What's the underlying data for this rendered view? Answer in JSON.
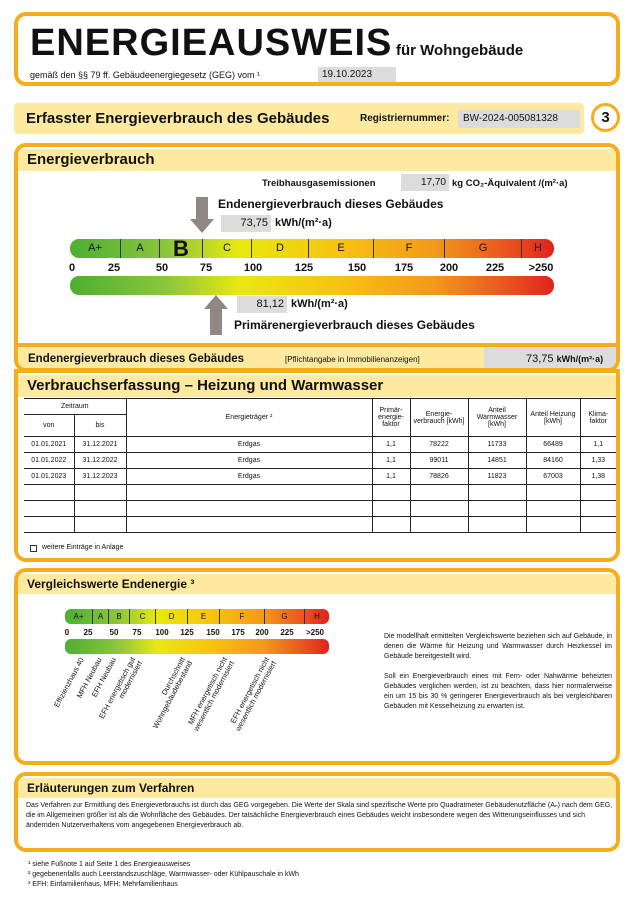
{
  "header": {
    "title": "ENERGIEAUSWEIS",
    "subtitle": "für Wohngebäude",
    "law": "gemäß den §§ 79 ff. Gebäudeenergiegesetz (GEG) vom ¹",
    "date": "19.10.2023"
  },
  "section_bar": {
    "title": "Erfasster Energieverbrauch des Gebäudes",
    "reg_label": "Registriernummer:",
    "reg_number": "BW-2024-005081328",
    "page": "3"
  },
  "energy": {
    "title": "Energieverbrauch",
    "ghg_label": "Treibhausgasemissionen",
    "ghg_value": "17,70",
    "ghg_unit": "kg CO₂-Äquivalent /(m²·a)",
    "end_label": "Endenergieverbrauch dieses Gebäudes",
    "end_value": "73,75",
    "unit": "kWh/(m²·a)",
    "primary_value": "81,12",
    "primary_label": "Primärenergieverbrauch dieses Gebäudes",
    "current_class": "B",
    "classes": [
      "A+",
      "A",
      "B",
      "C",
      "D",
      "E",
      "F",
      "G",
      "H"
    ],
    "ticks": [
      "0",
      "25",
      "50",
      "75",
      "100",
      "125",
      "150",
      "175",
      "200",
      "225",
      ">250"
    ],
    "summary_label": "Endenergieverbrauch dieses Gebäudes",
    "summary_note": "[Pflichtangabe in Immobilienanzeigen]",
    "summary_value": "73,75",
    "summary_unit": "kWh/(m²·a)"
  },
  "consumption": {
    "title": "Verbrauchserfassung – Heizung und Warmwasser",
    "headers": {
      "period": "Zeitraum",
      "from": "von",
      "to": "bis",
      "carrier": "Energieträger ²",
      "pef": "Primär-energie-faktor",
      "usage": "Energie-verbrauch [kWh]",
      "ww": "Anteil Warmwasser [kWh]",
      "heat": "Anteil Heizung [kWh]",
      "climate": "Klima-faktor"
    },
    "rows": [
      [
        "01.01.2021",
        "31.12.2021",
        "Erdgas",
        "1,1",
        "78222",
        "11733",
        "66489",
        "1,1"
      ],
      [
        "01.01.2022",
        "31.12.2022",
        "Erdgas",
        "1,1",
        "99011",
        "14851",
        "84160",
        "1,33"
      ],
      [
        "01.01.2023",
        "31.12.2023",
        "Erdgas",
        "1,1",
        "78826",
        "11823",
        "67003",
        "1,38"
      ]
    ],
    "more": "weitere Einträge in Anlage"
  },
  "comparison": {
    "title": "Vergleichswerte Endenergie ³",
    "labels": [
      "Effizienzhaus 40",
      "MFH Neubau",
      "EFH Neubau",
      "EFH energetisch gut modernisiert",
      "Durchschnitt Wohngebäudebestand",
      "MFH energetisch nicht wesentlich modernisiert",
      "EFH energetisch nicht wesentlich modernisiert"
    ],
    "text": "Die modellhaft ermittelten Vergleichswerte beziehen sich auf Gebäude, in denen die Wärme für Heizung und Warmwasser durch Heizkessel im Gebäude bereitgestellt wird.",
    "text2": "Soll ein Energieverbrauch eines mit Fern- oder Nahwärme beheizten Gebäudes verglichen werden, ist zu beachten, dass hier normalerweise ein um 15 bis 30 % geringerer Energieverbrauch als bei vergleichbaren Gebäuden mit Kesselheizung zu erwarten ist."
  },
  "explain": {
    "title": "Erläuterungen zum Verfahren",
    "text": "Das Verfahren zur Ermittlung des Energieverbrauchs ist durch das GEG vorgegeben. Die Werte der Skala sind spezifische Werte pro Quadratmeter Gebäudenutzfläche (Aₙ) nach dem GEG, die im Allgemeinen größer ist als die Wohnfläche des Gebäudes. Der tatsächliche Energieverbrauch eines Gebäudes weicht insbesondere wegen des Witterungseinflusses und sich ändernden Nutzerverhaltens vom angegebenen Energieverbrauch ab."
  },
  "footnotes": [
    "¹ siehe Fußnote 1 auf Seite 1 des Energieausweises",
    "² gegebenenfalls auch Leerstandszuschläge, Warmwasser- oder Kühlpauschale in kWh",
    "³ EFH: Einfamilienhaus, MFH: Mehrfamilienhaus"
  ]
}
